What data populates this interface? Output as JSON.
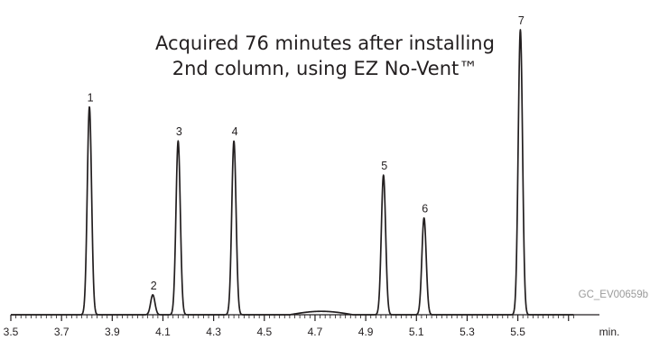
{
  "chart_data": {
    "type": "line",
    "title_lines": [
      "Acquired 76 minutes after installing",
      "2nd column, using EZ No-Vent™"
    ],
    "xlabel": "min.",
    "ylabel": "",
    "xlim": [
      3.5,
      6.0
    ],
    "ylim": [
      0,
      1
    ],
    "grid": false,
    "x_tick_labels": [
      "3.5",
      "3.7",
      "3.9",
      "4.1",
      "4.3",
      "4.5",
      "4.7",
      "4.9",
      "5.1",
      "5.3",
      "5.5"
    ],
    "annotation": "GC_EV00659b",
    "peaks": [
      {
        "label": "1",
        "x": 3.81,
        "height": 0.73
      },
      {
        "label": "2",
        "x": 4.06,
        "height": 0.07
      },
      {
        "label": "3",
        "x": 4.16,
        "height": 0.61
      },
      {
        "label": "4",
        "x": 4.38,
        "height": 0.61
      },
      {
        "label": "5",
        "x": 4.97,
        "height": 0.49
      },
      {
        "label": "6",
        "x": 5.13,
        "height": 0.34
      },
      {
        "label": "7",
        "x": 5.51,
        "height": 1.0
      }
    ],
    "baseline_hump": {
      "x_start": 4.6,
      "x_end": 4.85,
      "height": 0.012
    }
  }
}
